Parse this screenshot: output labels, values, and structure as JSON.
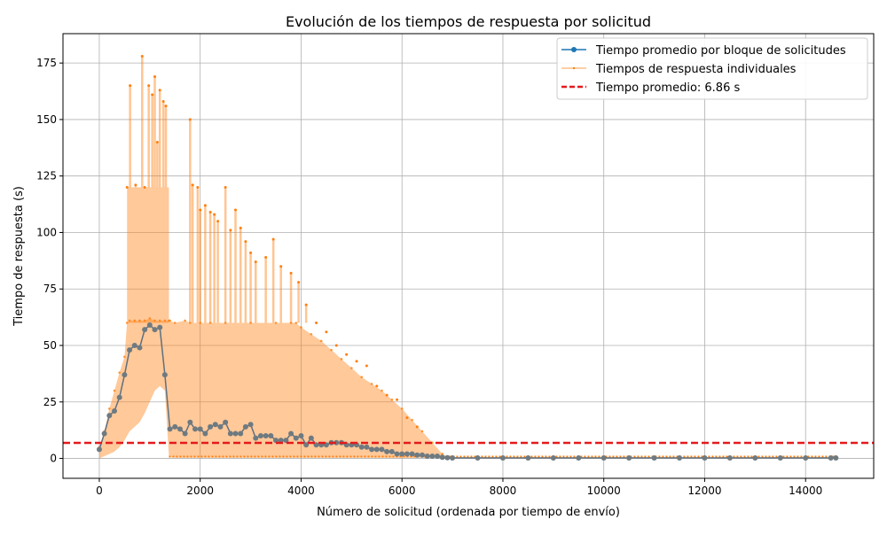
{
  "chart_data": {
    "type": "line",
    "title": "Evolución de los tiempos de respuesta por solicitud",
    "xlabel": "Número de solicitud (ordenada por tiempo de envío)",
    "ylabel": "Tiempo de respuesta (s)",
    "xlim": [
      -720,
      15350
    ],
    "ylim": [
      -8.8,
      188
    ],
    "xticks": [
      0,
      2000,
      4000,
      6000,
      8000,
      10000,
      12000,
      14000
    ],
    "yticks": [
      0,
      25,
      50,
      75,
      100,
      125,
      150,
      175
    ],
    "grid": true,
    "legend_position": "top-right",
    "colors": {
      "block_avg": "#1f77b4",
      "individual": "#ff7f0e",
      "mean_line": "#e41a1c",
      "grid": "#b0b0b0"
    },
    "series": [
      {
        "name": "Tiempo promedio por bloque de solicitudes",
        "x": [
          0,
          100,
          200,
          300,
          400,
          500,
          600,
          700,
          800,
          900,
          1000,
          1100,
          1200,
          1300,
          1400,
          1500,
          1600,
          1700,
          1800,
          1900,
          2000,
          2100,
          2200,
          2300,
          2400,
          2500,
          2600,
          2700,
          2800,
          2900,
          3000,
          3100,
          3200,
          3300,
          3400,
          3500,
          3600,
          3700,
          3800,
          3900,
          4000,
          4100,
          4200,
          4300,
          4400,
          4500,
          4600,
          4700,
          4800,
          4900,
          5000,
          5100,
          5200,
          5300,
          5400,
          5500,
          5600,
          5700,
          5800,
          5900,
          6000,
          6100,
          6200,
          6300,
          6400,
          6500,
          6600,
          6700,
          6800,
          6900,
          7000,
          7500,
          8000,
          8500,
          9000,
          9500,
          10000,
          10500,
          11000,
          11500,
          12000,
          12500,
          13000,
          13500,
          14000,
          14500,
          14600
        ],
        "values": [
          4,
          11,
          19,
          21,
          27,
          37,
          48,
          50,
          49,
          57,
          59,
          57,
          58,
          37,
          13,
          14,
          13,
          11,
          16,
          13,
          13,
          11,
          14,
          15,
          14,
          16,
          11,
          11,
          11,
          14,
          15,
          9,
          10,
          10,
          10,
          8,
          8,
          8,
          11,
          9,
          10,
          6,
          9,
          6,
          6,
          6,
          7,
          7,
          7,
          6,
          6,
          6,
          5,
          5,
          4,
          4,
          4,
          3,
          3,
          2,
          2,
          2,
          2,
          1.5,
          1.5,
          1,
          1,
          1,
          0.5,
          0.3,
          0.2,
          0.2,
          0.2,
          0.2,
          0.2,
          0.2,
          0.2,
          0.2,
          0.2,
          0.2,
          0.2,
          0.2,
          0.2,
          0.2,
          0.2,
          0.2,
          0.2
        ]
      },
      {
        "name": "Tiempos de respuesta individuales",
        "envelope_x": [
          0,
          100,
          200,
          300,
          400,
          500,
          550,
          600,
          700,
          800,
          900,
          1000,
          1100,
          1200,
          1300,
          1380,
          1400,
          1500,
          1700,
          1800,
          2000,
          2200,
          2500,
          3000,
          3500,
          3800,
          3900,
          4000,
          4200,
          4400,
          4600,
          4800,
          5000,
          5200,
          5400,
          5600,
          5800,
          6000,
          6200,
          6400,
          6600,
          6800,
          6900,
          7000,
          8000,
          10000,
          12000,
          14000,
          14600
        ],
        "envelope_upper": [
          5,
          12,
          22,
          30,
          38,
          45,
          60,
          61,
          61,
          61,
          61,
          62,
          61,
          61,
          61,
          61,
          61,
          60,
          61,
          60,
          60,
          60,
          60,
          60,
          60,
          60,
          60,
          58,
          55,
          52,
          48,
          44,
          40,
          36,
          33,
          30,
          26,
          22,
          17,
          12,
          7,
          2,
          0.5,
          0.5,
          0.5,
          0.5,
          0.5,
          0.5,
          0.5
        ],
        "envelope_lower": [
          0,
          1,
          2,
          3,
          5,
          8,
          10,
          12,
          14,
          16,
          20,
          25,
          30,
          32,
          30,
          1,
          0.5,
          0.3,
          0.3,
          0.3,
          0.3,
          0.3,
          0.3,
          0.3,
          0.3,
          0.3,
          0.3,
          0.3,
          0.3,
          0.3,
          0.3,
          0.3,
          0.3,
          0.3,
          0.3,
          0.3,
          0.3,
          0.3,
          0.3,
          0.3,
          0.3,
          0,
          0,
          0,
          0,
          0,
          0,
          0,
          0
        ],
        "spikes": [
          {
            "x": 550,
            "y": 120
          },
          {
            "x": 610,
            "y": 165
          },
          {
            "x": 720,
            "y": 121
          },
          {
            "x": 850,
            "y": 178
          },
          {
            "x": 900,
            "y": 120
          },
          {
            "x": 980,
            "y": 165
          },
          {
            "x": 1050,
            "y": 161
          },
          {
            "x": 1100,
            "y": 169
          },
          {
            "x": 1150,
            "y": 140
          },
          {
            "x": 1200,
            "y": 163
          },
          {
            "x": 1270,
            "y": 158
          },
          {
            "x": 1320,
            "y": 156
          },
          {
            "x": 1800,
            "y": 150
          },
          {
            "x": 1850,
            "y": 121
          },
          {
            "x": 1950,
            "y": 120
          },
          {
            "x": 2000,
            "y": 110
          },
          {
            "x": 2100,
            "y": 112
          },
          {
            "x": 2200,
            "y": 109
          },
          {
            "x": 2280,
            "y": 108
          },
          {
            "x": 2350,
            "y": 105
          },
          {
            "x": 2500,
            "y": 120
          },
          {
            "x": 2600,
            "y": 101
          },
          {
            "x": 2700,
            "y": 110
          },
          {
            "x": 2800,
            "y": 102
          },
          {
            "x": 2900,
            "y": 96
          },
          {
            "x": 3000,
            "y": 91
          },
          {
            "x": 3100,
            "y": 87
          },
          {
            "x": 3300,
            "y": 89
          },
          {
            "x": 3450,
            "y": 97
          },
          {
            "x": 3600,
            "y": 85
          },
          {
            "x": 3800,
            "y": 82
          },
          {
            "x": 3950,
            "y": 78
          },
          {
            "x": 4100,
            "y": 68
          },
          {
            "x": 4300,
            "y": 60
          },
          {
            "x": 4500,
            "y": 56
          },
          {
            "x": 4700,
            "y": 50
          },
          {
            "x": 4900,
            "y": 46
          },
          {
            "x": 5100,
            "y": 43
          },
          {
            "x": 5300,
            "y": 41
          },
          {
            "x": 5500,
            "y": 32
          },
          {
            "x": 5700,
            "y": 28
          },
          {
            "x": 5900,
            "y": 26
          },
          {
            "x": 6100,
            "y": 18
          },
          {
            "x": 6300,
            "y": 14
          }
        ]
      },
      {
        "name": "Tiempo promedio: 6.86 s",
        "mean_value": 6.86
      }
    ]
  }
}
